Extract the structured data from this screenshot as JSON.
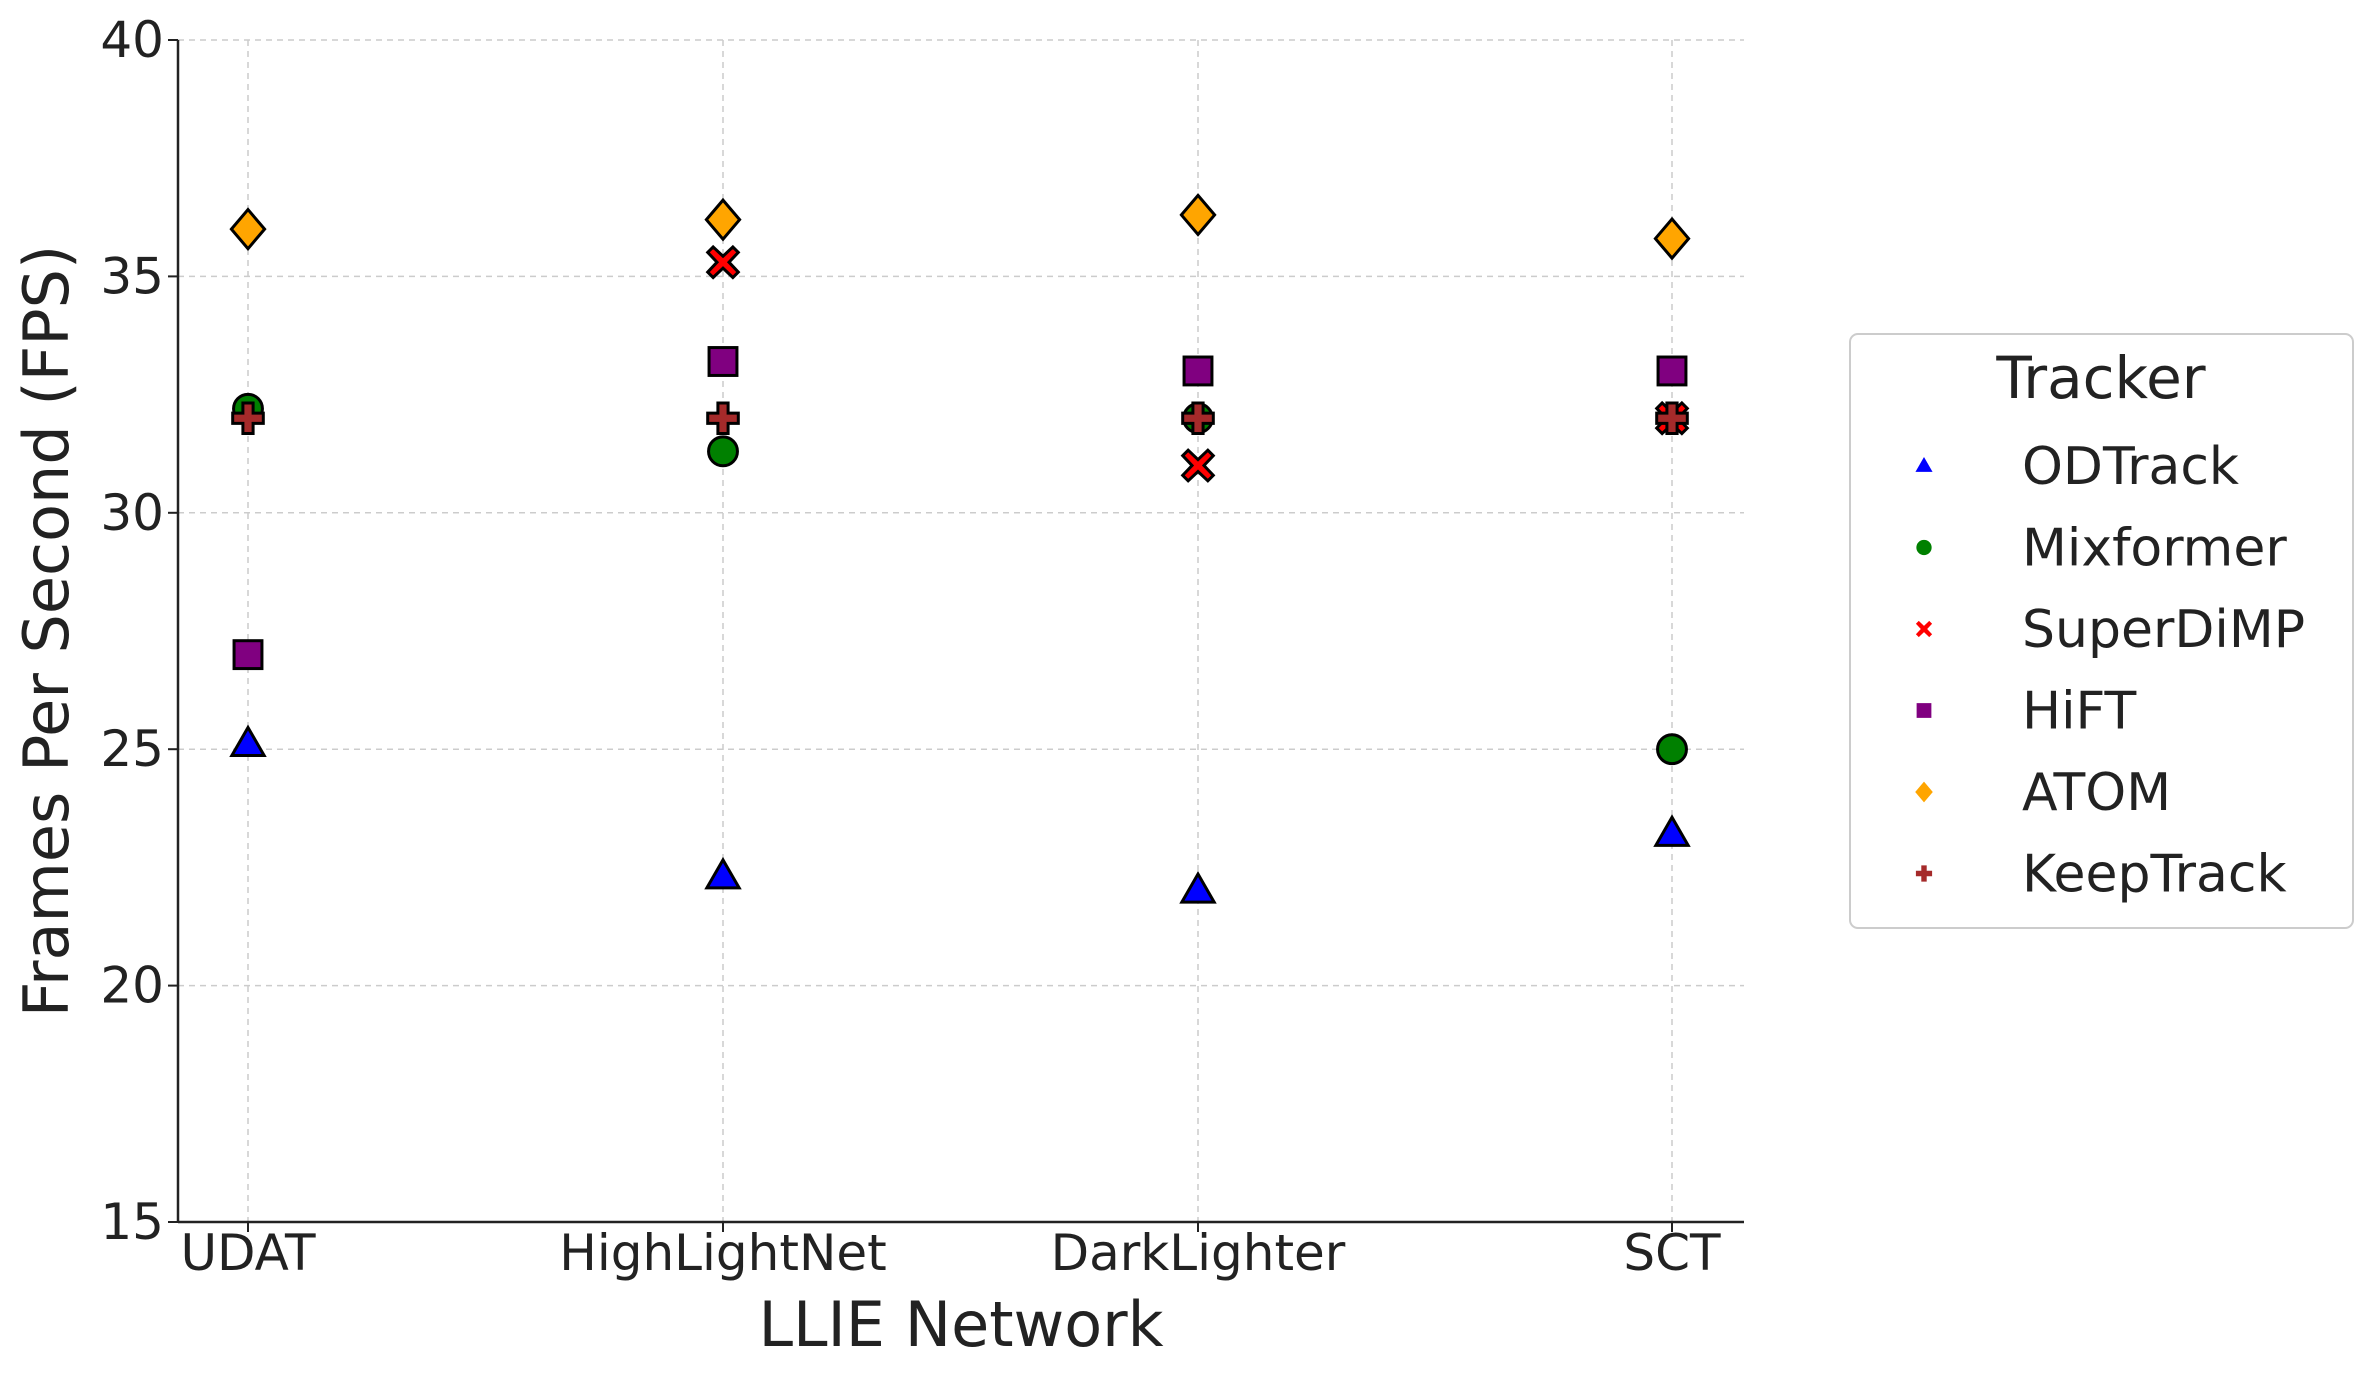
{
  "chart_data": {
    "type": "scatter",
    "title": "",
    "xlabel": "LLIE Network",
    "ylabel": "Frames Per Second (FPS)",
    "categories": [
      "UDAT",
      "HighLightNet",
      "DarkLighter",
      "SCT"
    ],
    "ylim": [
      15,
      40
    ],
    "yticks": [
      "15",
      "20",
      "25",
      "30",
      "35",
      "40"
    ],
    "grid": true,
    "legend": {
      "title": "Tracker",
      "placement": "right-outside"
    },
    "series": [
      {
        "name": "ODTrack",
        "marker": "triangle",
        "color": "#0000ff",
        "values": [
          25.1,
          22.3,
          22.0,
          23.2
        ]
      },
      {
        "name": "Mixformer",
        "marker": "circle",
        "color": "#008000",
        "values": [
          32.2,
          31.3,
          32.0,
          25.0
        ]
      },
      {
        "name": "SuperDiMP",
        "marker": "x",
        "color": "#ff0000",
        "values": [
          null,
          35.3,
          31.0,
          32.0
        ]
      },
      {
        "name": "HiFT",
        "marker": "square",
        "color": "#800080",
        "values": [
          27.0,
          33.2,
          33.0,
          33.0
        ]
      },
      {
        "name": "ATOM",
        "marker": "diamond",
        "color": "#ffa500",
        "values": [
          36.0,
          36.2,
          36.3,
          35.8
        ]
      },
      {
        "name": "KeepTrack",
        "marker": "plus",
        "color": "#a52a2a",
        "values": [
          32.0,
          32.0,
          32.0,
          32.0
        ]
      }
    ]
  }
}
